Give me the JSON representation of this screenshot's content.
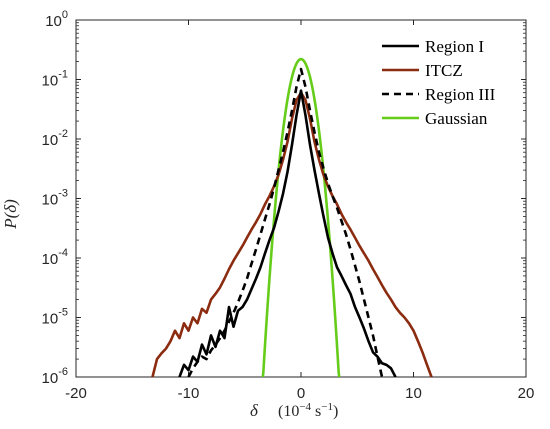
{
  "chart_data": {
    "type": "line",
    "xlabel": "δ",
    "xunit": "(10",
    "xunit_exp": "−4",
    "xunit_tail": " s",
    "xunit_exp2": "−1",
    "xunit_close": ")",
    "ylabel": "P(δ)",
    "xlim": [
      -20,
      20
    ],
    "ylim": [
      1e-06,
      1
    ],
    "yscale": "log",
    "xticks": [
      -20,
      -10,
      0,
      10,
      20
    ],
    "xtick_labels": [
      "-20",
      "-10",
      "0",
      "10",
      "20"
    ],
    "yticks": [
      1e-06,
      1e-05,
      0.0001,
      0.001,
      0.01,
      0.1,
      1
    ],
    "ytick_bases": [
      "10",
      "10",
      "10",
      "10",
      "10",
      "10",
      "10"
    ],
    "ytick_exps": [
      "-6",
      "-5",
      "-4",
      "-3",
      "-2",
      "-1",
      "0"
    ],
    "legend_position": "top-right",
    "grid": false,
    "series": [
      {
        "name": "Region I",
        "color": "#000000",
        "dash": "solid",
        "x": [
          -10.8,
          -10.4,
          -10.0,
          -9.6,
          -9.2,
          -8.8,
          -8.4,
          -8.0,
          -7.6,
          -7.2,
          -6.8,
          -6.4,
          -6.0,
          -5.6,
          -5.2,
          -4.8,
          -4.4,
          -4.0,
          -3.6,
          -3.2,
          -2.8,
          -2.4,
          -2.0,
          -1.6,
          -1.2,
          -0.8,
          -0.4,
          0.0,
          0.4,
          0.8,
          1.2,
          1.6,
          2.0,
          2.4,
          2.8,
          3.2,
          3.6,
          4.0,
          4.4,
          4.8,
          5.2,
          5.6,
          6.0,
          6.4,
          6.8,
          7.2,
          7.6,
          8.0,
          8.4
        ],
        "y": [
          1e-06,
          1.6e-06,
          1.3e-06,
          2.2e-06,
          1.8e-06,
          3.5e-06,
          2.4e-06,
          5e-06,
          3.2e-06,
          6e-06,
          4.5e-06,
          1.5e-05,
          7e-06,
          1.3e-05,
          1.5e-05,
          2e-05,
          3e-05,
          4.5e-05,
          7e-05,
          0.00012,
          0.0002,
          0.00032,
          0.0006,
          0.0012,
          0.0028,
          0.008,
          0.025,
          0.065,
          0.025,
          0.008,
          0.003,
          0.0012,
          0.0005,
          0.00022,
          0.00012,
          7e-05,
          5e-05,
          3.5e-05,
          2.5e-05,
          1.5e-05,
          1e-05,
          6.5e-06,
          4e-06,
          2.6e-06,
          2.2e-06,
          1.7e-06,
          1.6e-06,
          1.4e-06,
          1e-06
        ]
      },
      {
        "name": "ITCZ",
        "color": "#8B2B10",
        "dash": "solid",
        "x": [
          -13.2,
          -12.8,
          -12.4,
          -12.0,
          -11.6,
          -11.2,
          -10.8,
          -10.4,
          -10.0,
          -9.6,
          -9.2,
          -8.8,
          -8.4,
          -8.0,
          -7.6,
          -7.2,
          -6.8,
          -6.4,
          -6.0,
          -5.6,
          -5.2,
          -4.8,
          -4.4,
          -4.0,
          -3.6,
          -3.2,
          -2.8,
          -2.4,
          -2.0,
          -1.6,
          -1.2,
          -0.8,
          -0.4,
          0.0,
          0.4,
          0.8,
          1.2,
          1.6,
          2.0,
          2.4,
          2.8,
          3.2,
          3.6,
          4.0,
          4.4,
          4.8,
          5.2,
          5.6,
          6.0,
          6.4,
          6.8,
          7.2,
          7.6,
          8.0,
          8.4,
          8.8,
          9.2,
          9.6,
          10.0,
          10.4,
          10.8,
          11.2,
          11.6
        ],
        "y": [
          1e-06,
          2e-06,
          2.5e-06,
          3e-06,
          4e-06,
          6e-06,
          4.5e-06,
          8e-06,
          6e-06,
          1e-05,
          8e-06,
          1.4e-05,
          1.2e-05,
          2e-05,
          2.5e-05,
          3.2e-05,
          4.5e-05,
          6.5e-05,
          9e-05,
          0.00012,
          0.00016,
          0.00022,
          0.0003,
          0.0004,
          0.00055,
          0.0008,
          0.0011,
          0.0016,
          0.0025,
          0.0045,
          0.009,
          0.022,
          0.045,
          0.06,
          0.045,
          0.022,
          0.009,
          0.0045,
          0.0025,
          0.0016,
          0.0011,
          0.0008,
          0.00055,
          0.0004,
          0.0003,
          0.00022,
          0.00016,
          0.00012,
          9e-05,
          6.5e-05,
          4.8e-05,
          3.5e-05,
          2.6e-05,
          2e-05,
          1.5e-05,
          1.2e-05,
          1e-05,
          8e-06,
          6e-06,
          4e-06,
          2.6e-06,
          1.6e-06,
          1e-06
        ]
      },
      {
        "name": "Region III",
        "color": "#000000",
        "dash": "dashed",
        "x": [
          -10.0,
          -9.6,
          -9.2,
          -8.8,
          -8.4,
          -8.0,
          -7.6,
          -7.2,
          -6.8,
          -6.4,
          -6.0,
          -5.6,
          -5.2,
          -4.8,
          -4.4,
          -4.0,
          -3.6,
          -3.2,
          -2.8,
          -2.4,
          -2.0,
          -1.6,
          -1.2,
          -0.8,
          -0.4,
          0.0,
          0.4,
          0.8,
          1.2,
          1.6,
          2.0,
          2.4,
          2.8,
          3.2,
          3.6,
          4.0,
          4.4,
          4.8,
          5.2,
          5.6,
          6.0,
          6.4,
          6.8,
          7.2
        ],
        "y": [
          1e-06,
          1.4e-06,
          1.8e-06,
          2.2e-06,
          2e-06,
          2.8e-06,
          3.5e-06,
          4.5e-06,
          6e-06,
          8.5e-06,
          1.2e-05,
          1.8e-05,
          2.8e-05,
          4.5e-05,
          8e-05,
          0.00014,
          0.00025,
          0.00045,
          0.0008,
          0.0015,
          0.003,
          0.006,
          0.013,
          0.03,
          0.075,
          0.15,
          0.075,
          0.03,
          0.013,
          0.006,
          0.0032,
          0.0018,
          0.0011,
          0.0007,
          0.00042,
          0.00025,
          0.00014,
          7.5e-05,
          4e-05,
          2e-05,
          1e-05,
          5e-06,
          2.2e-06,
          1e-06
        ]
      },
      {
        "name": "Gaussian",
        "color": "#66CC1A",
        "dash": "solid",
        "gaussian": {
          "peak": 0.22,
          "sigma": 0.68,
          "xmin": -3.5,
          "xmax": 3.5
        }
      }
    ]
  }
}
